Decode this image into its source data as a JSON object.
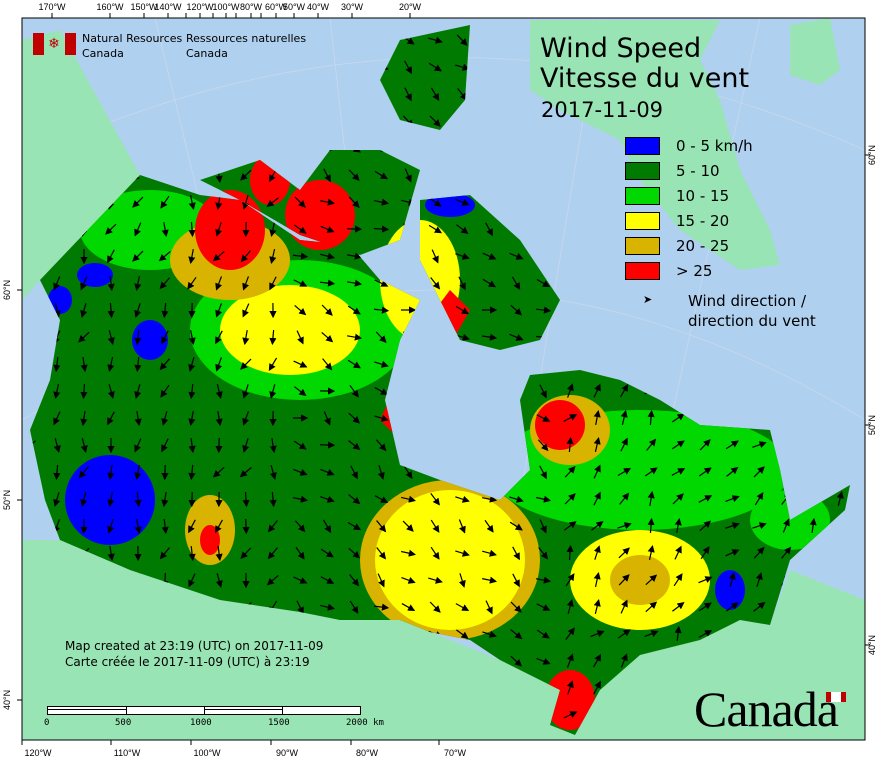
{
  "header": {
    "department_en": [
      "Natural Resources",
      "Canada"
    ],
    "department_fr": [
      "Ressources naturelles",
      "Canada"
    ]
  },
  "title": {
    "en": "Wind Speed",
    "fr": "Vitesse du vent",
    "date": "2017-11-09"
  },
  "legend": {
    "classes": [
      {
        "label": "0 - 5 km/h",
        "color": "#0000ff"
      },
      {
        "label": "5 - 10",
        "color": "#007a00"
      },
      {
        "label": "10 - 15",
        "color": "#00d800"
      },
      {
        "label": "15 - 20",
        "color": "#ffff00"
      },
      {
        "label": "20 - 25",
        "color": "#d8b400"
      },
      {
        "label": "> 25",
        "color": "#ff0000"
      }
    ],
    "arrow_label": [
      "Wind direction /",
      "direction du vent"
    ]
  },
  "credit": {
    "en": "Map created at 23:19 (UTC) on 2017-11-09",
    "fr": "Carte créée le 2017-11-09 (UTC) à 23:19"
  },
  "scale_bar": {
    "ticks": [
      "0",
      "500",
      "1000",
      "1500",
      "2000 km"
    ]
  },
  "axes": {
    "top": [
      "170°W",
      "160°W",
      "150°W",
      "140°W",
      "120°W",
      "100°W",
      "80°W",
      "60°W",
      "50°W",
      "40°W",
      "30°W",
      "20°W"
    ],
    "bottom": [
      "120°W",
      "110°W",
      "100°W",
      "90°W",
      "80°W",
      "70°W"
    ],
    "left": [
      "60°N",
      "50°N",
      "40°N"
    ],
    "right": [
      "60°N",
      "50°N",
      "40°N"
    ]
  },
  "wordmark": "Canada",
  "colors": {
    "ocean": "#b0d0f0",
    "land": "#98e4b4",
    "flag_red": "#c00000"
  }
}
